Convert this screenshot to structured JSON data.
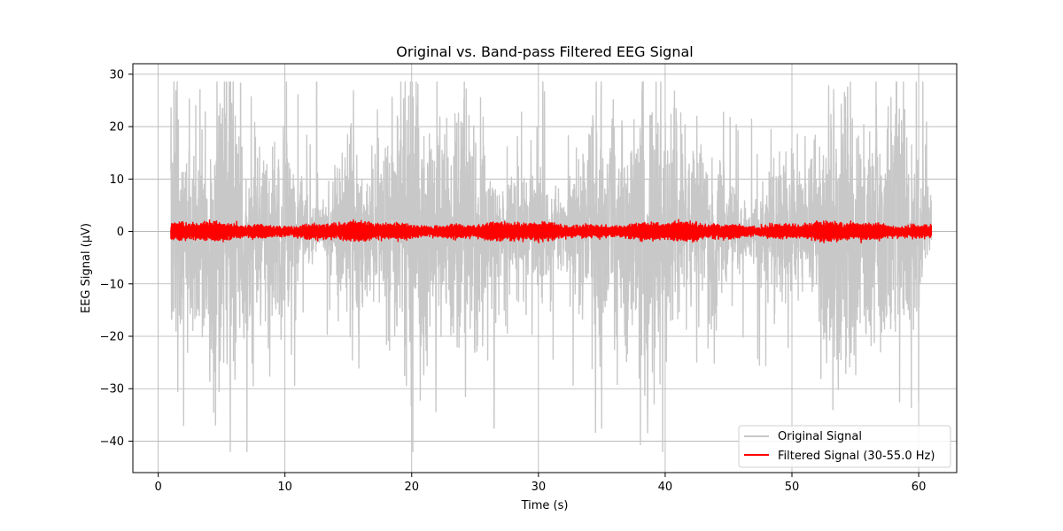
{
  "chart_data": {
    "type": "line",
    "title": "Original vs. Band-pass Filtered EEG Signal",
    "xlabel": "Time (s)",
    "ylabel": "EEG Signal (µV)",
    "xlim": [
      -2,
      63
    ],
    "ylim": [
      -46,
      32
    ],
    "x_ticks": [
      0,
      10,
      20,
      30,
      40,
      50,
      60
    ],
    "y_ticks": [
      -40,
      -30,
      -20,
      -10,
      0,
      10,
      20,
      30
    ],
    "x_tick_labels": [
      "0",
      "10",
      "20",
      "30",
      "40",
      "50",
      "60"
    ],
    "y_tick_labels": [
      "−40",
      "−30",
      "−20",
      "−10",
      "0",
      "10",
      "20",
      "30"
    ],
    "grid": true,
    "legend_position": "lower-right",
    "time_range": [
      1.0,
      61.0
    ],
    "series": [
      {
        "name": "Original Signal",
        "color": "#c8c8c8",
        "amplitude_envelope_uV": [
          -42,
          28.5
        ],
        "typical_amplitude_uV": 10,
        "key_extremes": [
          {
            "x": 7.0,
            "y": -42
          },
          {
            "x": 6.5,
            "y": 28.3
          },
          {
            "x": 12.5,
            "y": 28.5
          },
          {
            "x": 26.5,
            "y": -37.5
          },
          {
            "x": 2.0,
            "y": -37
          },
          {
            "x": 58.5,
            "y": -32.5
          },
          {
            "x": 60.0,
            "y": -32.5
          }
        ]
      },
      {
        "name": "Filtered Signal (30-55.0 Hz)",
        "color": "#ff0000",
        "amplitude_envelope_uV": [
          -3,
          3
        ],
        "typical_amplitude_uV": 1.5
      }
    ]
  }
}
